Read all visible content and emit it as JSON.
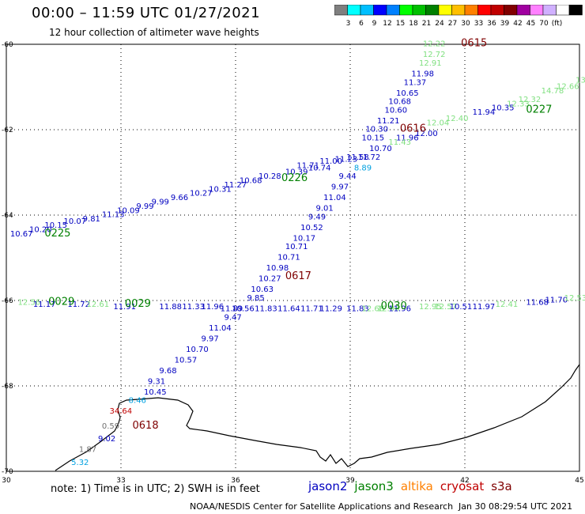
{
  "header": {
    "title": "00:00 – 11:59 UTC 01/27/2021",
    "subtitle": "12 hour collection of altimeter wave heights"
  },
  "colorbar": {
    "colors": [
      "#7f7f7f",
      "#00ffff",
      "#00bfff",
      "#0000ff",
      "#0080ff",
      "#00ff00",
      "#00c000",
      "#008000",
      "#ffff00",
      "#ffbf00",
      "#ff8000",
      "#ff0000",
      "#c00000",
      "#800000",
      "#a000a0",
      "#ff80ff",
      "#d0b0ff",
      "#ffffff",
      "#000000"
    ],
    "labels": [
      "3",
      "6",
      "9",
      "12",
      "15",
      "18",
      "21",
      "24",
      "27",
      "30",
      "33",
      "36",
      "39",
      "42",
      "45",
      "70",
      "(ft)"
    ]
  },
  "axes": {
    "lon_ticks": [
      "30",
      "33",
      "36",
      "39",
      "42",
      "45"
    ],
    "lat_ticks": [
      "-60",
      "-62",
      "-64",
      "-66",
      "-68",
      "-70"
    ]
  },
  "map_data": {
    "lon_range": [
      30,
      45
    ],
    "lat_range": [
      -60,
      -70
    ],
    "pass_labels": [
      {
        "text": "0615",
        "lon": 41.9,
        "lat": -60.05,
        "color": "#7f0000"
      },
      {
        "text": "0616",
        "lon": 40.3,
        "lat": -62.05,
        "color": "#7f0000"
      },
      {
        "text": "0617",
        "lon": 37.3,
        "lat": -65.5,
        "color": "#7f0000"
      },
      {
        "text": "0618",
        "lon": 33.3,
        "lat": -69.0,
        "color": "#7f0000"
      },
      {
        "text": "0225",
        "lon": 31.0,
        "lat": -64.5,
        "color": "#008000"
      },
      {
        "text": "0226",
        "lon": 37.2,
        "lat": -63.2,
        "color": "#008000"
      },
      {
        "text": "0227",
        "lon": 43.6,
        "lat": -61.6,
        "color": "#008000"
      },
      {
        "text": "0029",
        "lon": 31.1,
        "lat": -66.1,
        "color": "#008000"
      },
      {
        "text": "0029",
        "lon": 33.1,
        "lat": -66.15,
        "color": "#008000"
      },
      {
        "text": "0030",
        "lon": 39.8,
        "lat": -66.2,
        "color": "#008000"
      }
    ],
    "wave_values": [
      {
        "v": "12.22",
        "lon": 40.9,
        "lat": -60.05,
        "c": "#80e080"
      },
      {
        "v": "12.72",
        "lon": 40.9,
        "lat": -60.3,
        "c": "#80e080"
      },
      {
        "v": "12.91",
        "lon": 40.8,
        "lat": -60.5,
        "c": "#80e080"
      },
      {
        "v": "11.98",
        "lon": 40.6,
        "lat": -60.75,
        "c": "#0000c0"
      },
      {
        "v": "11.37",
        "lon": 40.4,
        "lat": -60.95,
        "c": "#0000c0"
      },
      {
        "v": "10.65",
        "lon": 40.2,
        "lat": -61.2,
        "c": "#0000c0"
      },
      {
        "v": "10.68",
        "lon": 40.0,
        "lat": -61.4,
        "c": "#0000c0"
      },
      {
        "v": "10.60",
        "lon": 39.9,
        "lat": -61.6,
        "c": "#0000c0"
      },
      {
        "v": "11.21",
        "lon": 39.7,
        "lat": -61.85,
        "c": "#0000c0"
      },
      {
        "v": "10.30",
        "lon": 39.4,
        "lat": -62.05,
        "c": "#0000c0"
      },
      {
        "v": "10.15",
        "lon": 39.3,
        "lat": -62.25,
        "c": "#0000c0"
      },
      {
        "v": "11.96",
        "lon": 40.2,
        "lat": -62.25,
        "c": "#0000c0"
      },
      {
        "v": "12.00",
        "lon": 40.7,
        "lat": -62.15,
        "c": "#0000c0"
      },
      {
        "v": "10.70",
        "lon": 39.5,
        "lat": -62.5,
        "c": "#0000c0"
      },
      {
        "v": "11.43",
        "lon": 40.0,
        "lat": -62.35,
        "c": "#80e080"
      },
      {
        "v": "11.58",
        "lon": 38.9,
        "lat": -62.7,
        "c": "#0000c0"
      },
      {
        "v": "11.72",
        "lon": 39.2,
        "lat": -62.7,
        "c": "#0000c0"
      },
      {
        "v": "8.89",
        "lon": 39.1,
        "lat": -62.95,
        "c": "#00a0e0"
      },
      {
        "v": "9.44",
        "lon": 38.7,
        "lat": -63.15,
        "c": "#0000c0"
      },
      {
        "v": "9.97",
        "lon": 38.5,
        "lat": -63.4,
        "c": "#0000c0"
      },
      {
        "v": "11.04",
        "lon": 38.3,
        "lat": -63.65,
        "c": "#0000c0"
      },
      {
        "v": "9.01",
        "lon": 38.1,
        "lat": -63.9,
        "c": "#0000c0"
      },
      {
        "v": "9.49",
        "lon": 37.9,
        "lat": -64.1,
        "c": "#0000c0"
      },
      {
        "v": "10.52",
        "lon": 37.7,
        "lat": -64.35,
        "c": "#0000c0"
      },
      {
        "v": "10.17",
        "lon": 37.5,
        "lat": -64.6,
        "c": "#0000c0"
      },
      {
        "v": "10.71",
        "lon": 37.3,
        "lat": -64.8,
        "c": "#0000c0"
      },
      {
        "v": "10.71",
        "lon": 37.1,
        "lat": -65.05,
        "c": "#0000c0"
      },
      {
        "v": "10.98",
        "lon": 36.8,
        "lat": -65.3,
        "c": "#0000c0"
      },
      {
        "v": "10.27",
        "lon": 36.6,
        "lat": -65.55,
        "c": "#0000c0"
      },
      {
        "v": "10.63",
        "lon": 36.4,
        "lat": -65.8,
        "c": "#0000c0"
      },
      {
        "v": "9.85",
        "lon": 36.3,
        "lat": -66.0,
        "c": "#0000c0"
      },
      {
        "v": "10.56",
        "lon": 35.9,
        "lat": -66.25,
        "c": "#0000c0"
      },
      {
        "v": "9.47",
        "lon": 35.7,
        "lat": -66.45,
        "c": "#0000c0"
      },
      {
        "v": "11.04",
        "lon": 35.3,
        "lat": -66.7,
        "c": "#0000c0"
      },
      {
        "v": "9.97",
        "lon": 35.1,
        "lat": -66.95,
        "c": "#0000c0"
      },
      {
        "v": "10.70",
        "lon": 34.7,
        "lat": -67.2,
        "c": "#0000c0"
      },
      {
        "v": "10.57",
        "lon": 34.4,
        "lat": -67.45,
        "c": "#0000c0"
      },
      {
        "v": "9.68",
        "lon": 34.0,
        "lat": -67.7,
        "c": "#0000c0"
      },
      {
        "v": "9.31",
        "lon": 33.7,
        "lat": -67.95,
        "c": "#0000c0"
      },
      {
        "v": "10.45",
        "lon": 33.6,
        "lat": -68.2,
        "c": "#0000c0"
      },
      {
        "v": "8.46",
        "lon": 33.2,
        "lat": -68.4,
        "c": "#00a0e0"
      },
      {
        "v": "34.64",
        "lon": 32.7,
        "lat": -68.65,
        "c": "#c00000"
      },
      {
        "v": "0.59",
        "lon": 32.5,
        "lat": -69.0,
        "c": "#707070"
      },
      {
        "v": "9.02",
        "lon": 32.4,
        "lat": -69.3,
        "c": "#0000c0"
      },
      {
        "v": "1.87",
        "lon": 31.9,
        "lat": -69.55,
        "c": "#707070"
      },
      {
        "v": "5.32",
        "lon": 31.7,
        "lat": -69.85,
        "c": "#00a0e0"
      },
      {
        "v": "10.67",
        "lon": 30.1,
        "lat": -64.5,
        "c": "#0000c0"
      },
      {
        "v": "10.20",
        "lon": 30.6,
        "lat": -64.4,
        "c": "#0000c0"
      },
      {
        "v": "10.15",
        "lon": 31.0,
        "lat": -64.3,
        "c": "#0000c0"
      },
      {
        "v": "10.07",
        "lon": 31.5,
        "lat": -64.2,
        "c": "#0000c0"
      },
      {
        "v": "9.81",
        "lon": 32.0,
        "lat": -64.15,
        "c": "#0000c0"
      },
      {
        "v": "11.13",
        "lon": 32.5,
        "lat": -64.05,
        "c": "#0000c0"
      },
      {
        "v": "10.09",
        "lon": 32.9,
        "lat": -63.95,
        "c": "#0000c0"
      },
      {
        "v": "9.99",
        "lon": 33.4,
        "lat": -63.85,
        "c": "#0000c0"
      },
      {
        "v": "9.99",
        "lon": 33.8,
        "lat": -63.75,
        "c": "#0000c0"
      },
      {
        "v": "9.66",
        "lon": 34.3,
        "lat": -63.65,
        "c": "#0000c0"
      },
      {
        "v": "10.27",
        "lon": 34.8,
        "lat": -63.55,
        "c": "#0000c0"
      },
      {
        "v": "10.31",
        "lon": 35.3,
        "lat": -63.45,
        "c": "#0000c0"
      },
      {
        "v": "11.27",
        "lon": 35.7,
        "lat": -63.35,
        "c": "#0000c0"
      },
      {
        "v": "10.68",
        "lon": 36.1,
        "lat": -63.25,
        "c": "#0000c0"
      },
      {
        "v": "10.28",
        "lon": 36.6,
        "lat": -63.15,
        "c": "#0000c0"
      },
      {
        "v": "10.39",
        "lon": 37.3,
        "lat": -63.05,
        "c": "#0000c0"
      },
      {
        "v": "10.74",
        "lon": 37.9,
        "lat": -62.95,
        "c": "#0000c0"
      },
      {
        "v": "11.71",
        "lon": 37.6,
        "lat": -62.9,
        "c": "#0000c0"
      },
      {
        "v": "11.00",
        "lon": 38.2,
        "lat": -62.8,
        "c": "#0000c0"
      },
      {
        "v": "11.23",
        "lon": 38.6,
        "lat": -62.75,
        "c": "#0000c0"
      },
      {
        "v": "12.04",
        "lon": 41.0,
        "lat": -61.9,
        "c": "#80e080"
      },
      {
        "v": "12.40",
        "lon": 41.5,
        "lat": -61.8,
        "c": "#80e080"
      },
      {
        "v": "11.94",
        "lon": 42.2,
        "lat": -61.65,
        "c": "#0000c0"
      },
      {
        "v": "10.35",
        "lon": 42.7,
        "lat": -61.55,
        "c": "#0000c0"
      },
      {
        "v": "12.33",
        "lon": 43.1,
        "lat": -61.45,
        "c": "#80e080"
      },
      {
        "v": "12.32",
        "lon": 43.4,
        "lat": -61.35,
        "c": "#80e080"
      },
      {
        "v": "14.78",
        "lon": 44.0,
        "lat": -61.15,
        "c": "#80e080"
      },
      {
        "v": "12.66",
        "lon": 44.4,
        "lat": -61.05,
        "c": "#80e080"
      },
      {
        "v": "13.39",
        "lon": 44.9,
        "lat": -60.9,
        "c": "#80e080"
      },
      {
        "v": "12.56",
        "lon": 30.3,
        "lat": -66.1,
        "c": "#80e080"
      },
      {
        "v": "11.17",
        "lon": 30.7,
        "lat": -66.15,
        "c": "#0000c0"
      },
      {
        "v": "11.72",
        "lon": 31.6,
        "lat": -66.15,
        "c": "#0000c0"
      },
      {
        "v": "12.61",
        "lon": 32.1,
        "lat": -66.15,
        "c": "#80e080"
      },
      {
        "v": "11.91",
        "lon": 32.8,
        "lat": -66.2,
        "c": "#0000c0"
      },
      {
        "v": "11.88",
        "lon": 34.0,
        "lat": -66.2,
        "c": "#0000c0"
      },
      {
        "v": "11.33",
        "lon": 34.6,
        "lat": -66.2,
        "c": "#0000c0"
      },
      {
        "v": "11.96",
        "lon": 35.1,
        "lat": -66.2,
        "c": "#0000c0"
      },
      {
        "v": "11.89",
        "lon": 35.6,
        "lat": -66.25,
        "c": "#0000c0"
      },
      {
        "v": "11.83",
        "lon": 36.5,
        "lat": -66.25,
        "c": "#0000c0"
      },
      {
        "v": "11.64",
        "lon": 37.1,
        "lat": -66.25,
        "c": "#0000c0"
      },
      {
        "v": "11.71",
        "lon": 37.7,
        "lat": -66.25,
        "c": "#0000c0"
      },
      {
        "v": "11.29",
        "lon": 38.2,
        "lat": -66.25,
        "c": "#0000c0"
      },
      {
        "v": "11.83",
        "lon": 38.9,
        "lat": -66.25,
        "c": "#0000c0"
      },
      {
        "v": "12.68",
        "lon": 39.3,
        "lat": -66.25,
        "c": "#80e080"
      },
      {
        "v": "12.93",
        "lon": 39.7,
        "lat": -66.25,
        "c": "#80e080"
      },
      {
        "v": "11.96",
        "lon": 40.0,
        "lat": -66.25,
        "c": "#0000c0"
      },
      {
        "v": "12.95",
        "lon": 40.8,
        "lat": -66.2,
        "c": "#80e080"
      },
      {
        "v": "12.57",
        "lon": 41.2,
        "lat": -66.2,
        "c": "#80e080"
      },
      {
        "v": "10.51",
        "lon": 41.6,
        "lat": -66.2,
        "c": "#0000c0"
      },
      {
        "v": "11.97",
        "lon": 42.2,
        "lat": -66.2,
        "c": "#0000c0"
      },
      {
        "v": "12.41",
        "lon": 42.8,
        "lat": -66.15,
        "c": "#80e080"
      },
      {
        "v": "11.68",
        "lon": 43.6,
        "lat": -66.1,
        "c": "#0000c0"
      },
      {
        "v": "11.70",
        "lon": 44.1,
        "lat": -66.05,
        "c": "#0000c0"
      },
      {
        "v": "12.53",
        "lon": 44.6,
        "lat": -66.0,
        "c": "#80e080"
      }
    ]
  },
  "footer": {
    "note": "note:  1) Time is in UTC;  2) SWH is in feet",
    "legend": [
      {
        "name": "jason2",
        "color": "#0000c0"
      },
      {
        "name": "jason3",
        "color": "#008000"
      },
      {
        "name": "altika",
        "color": "#ff8000"
      },
      {
        "name": "cryosat",
        "color": "#c00000"
      },
      {
        "name": "s3a",
        "color": "#7f0000"
      }
    ],
    "credit": "NOAA/NESDIS Center for Satellite Applications and Research",
    "timestamp": "Jan 30 08:29:54 UTC 2021"
  }
}
